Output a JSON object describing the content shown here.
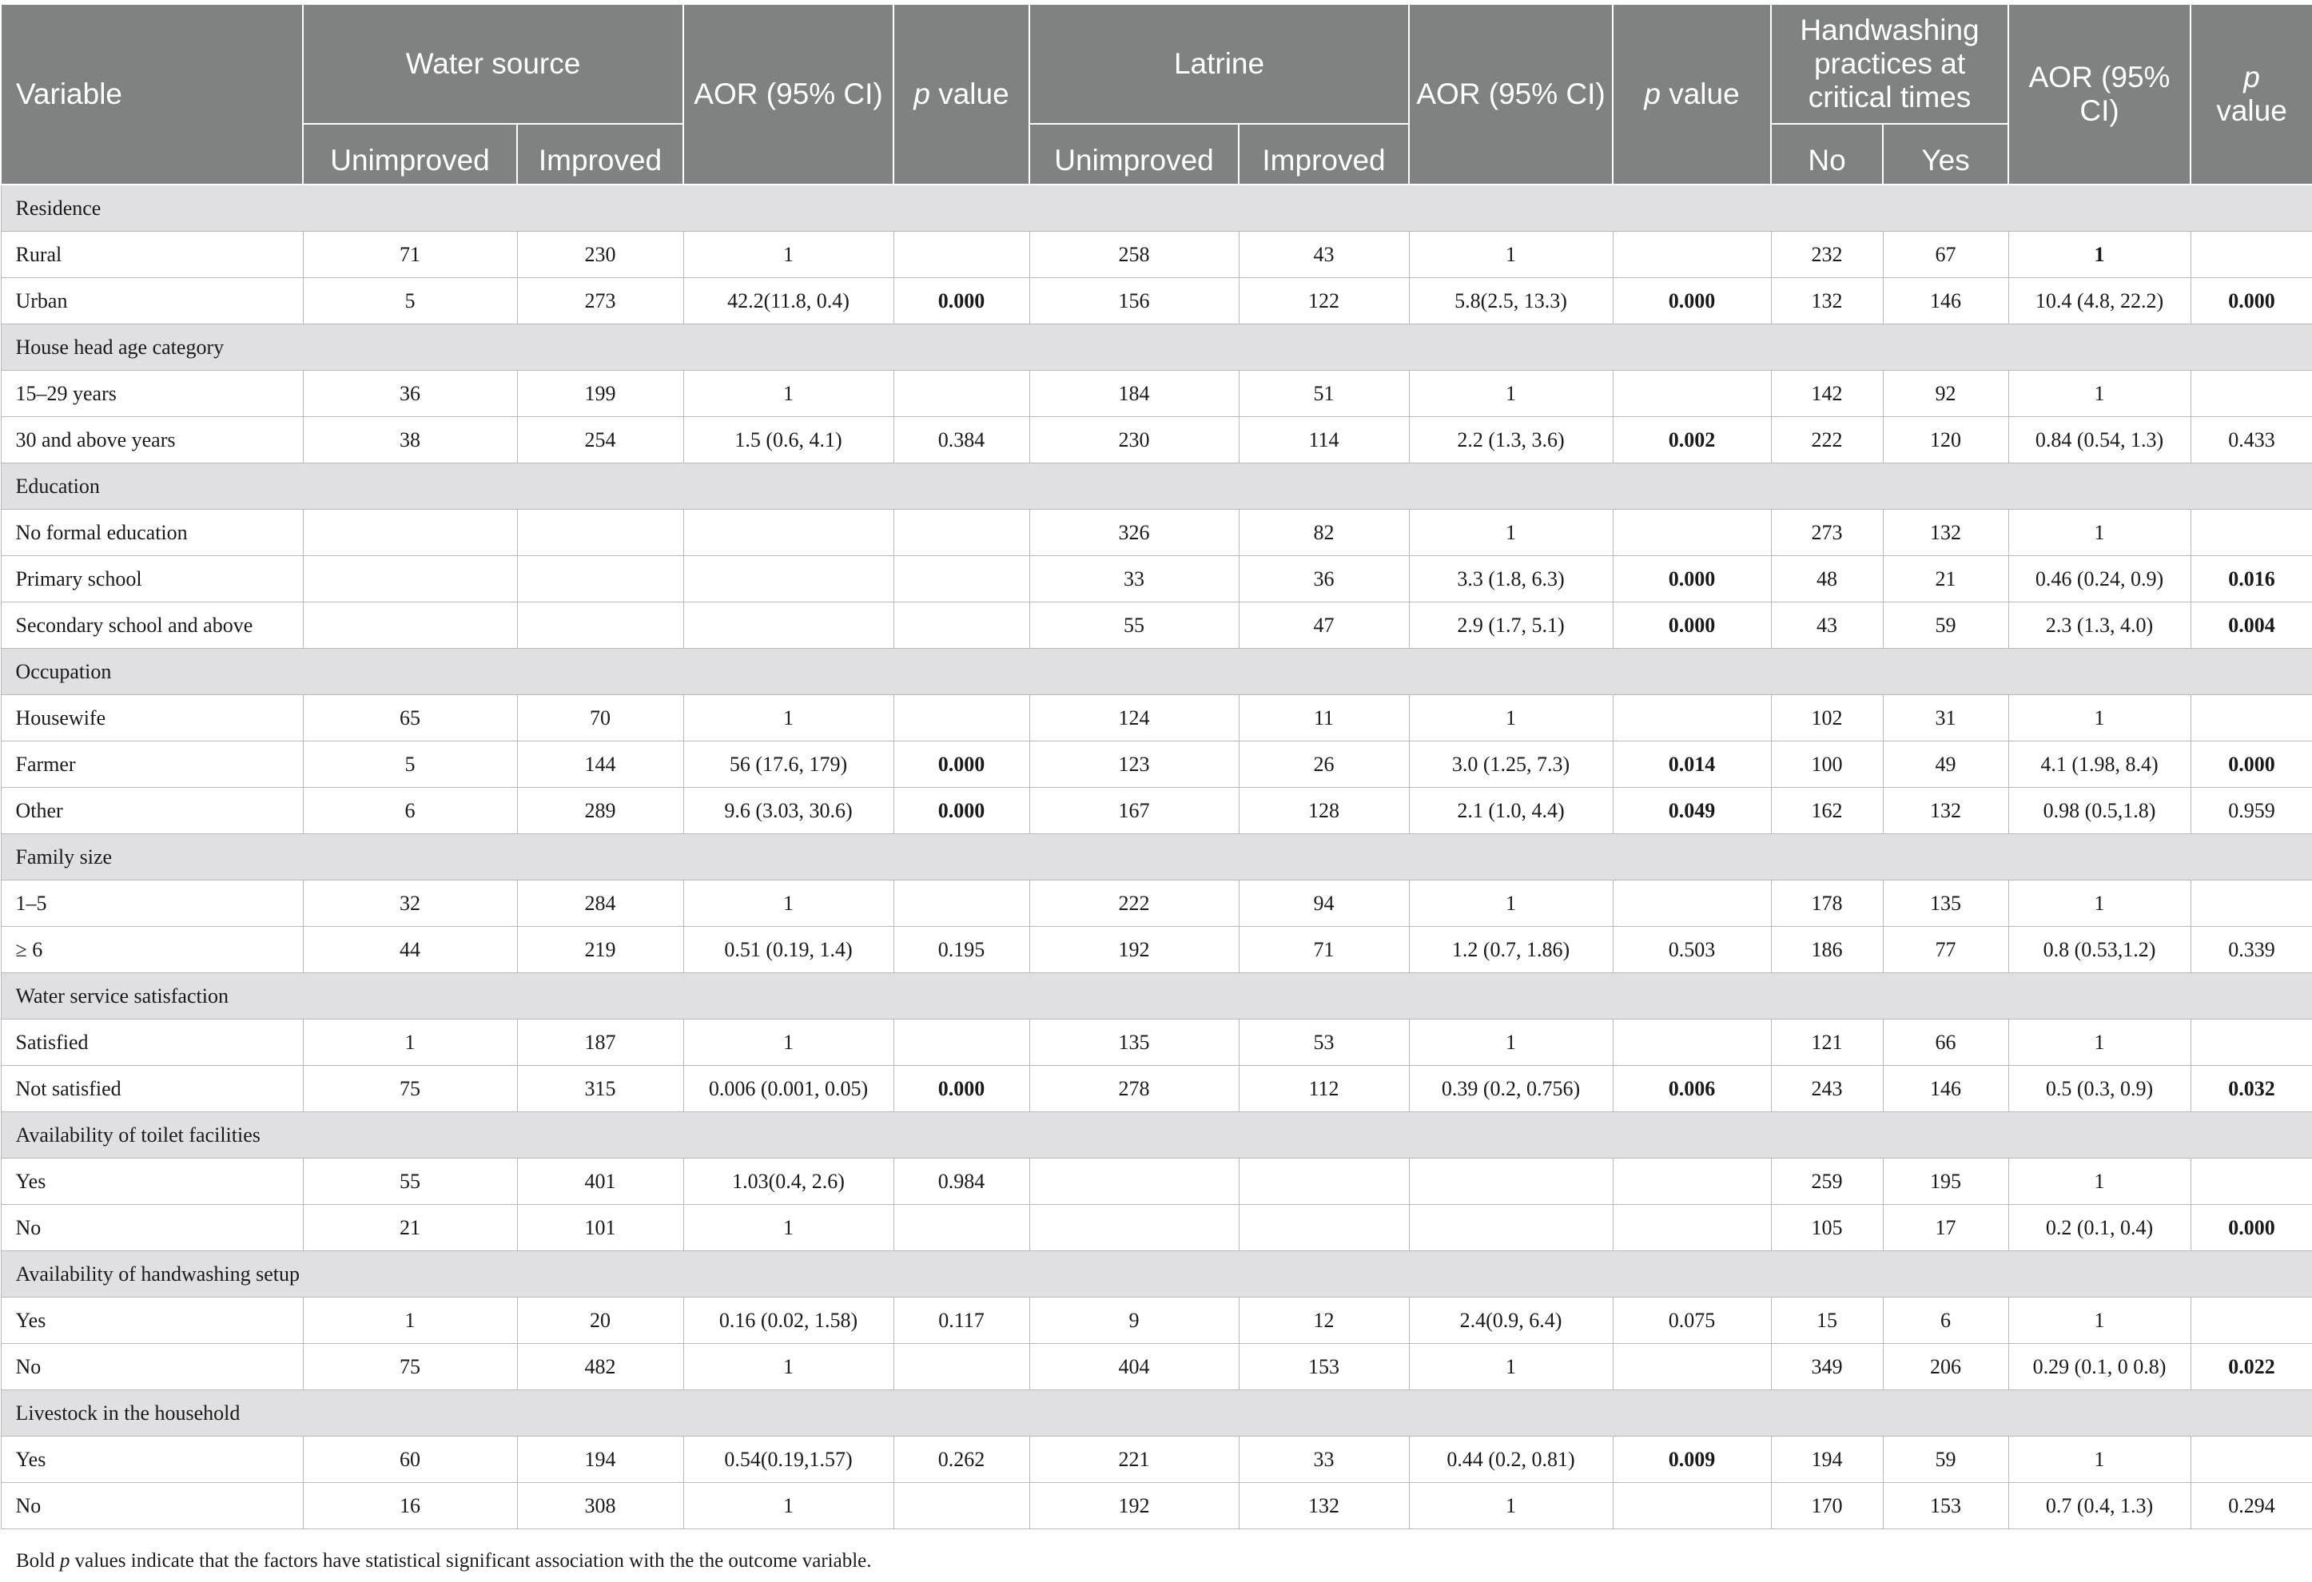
{
  "header": {
    "variable": "Variable",
    "water_source": "Water source",
    "water_unimproved": "Unimproved",
    "water_improved": "Improved",
    "aor_1": "AOR (95% CI)",
    "p_value_1": "value",
    "latrine": "Latrine",
    "latrine_unimproved": "Unimproved",
    "latrine_improved": "Improved",
    "aor_2": "AOR (95% CI)",
    "p_value_2": "value",
    "handwashing": "Handwashing practices at critical times",
    "hw_no": "No",
    "hw_yes": "Yes",
    "aor_3": "AOR (95% CI)",
    "p_value_3": "value",
    "p_letter": "p"
  },
  "categories": [
    {
      "name": "Residence",
      "rows": [
        {
          "label": "Rural",
          "cells": [
            "71",
            "230",
            "1",
            "",
            "258",
            "43",
            "1",
            "",
            "232",
            "67",
            "1",
            ""
          ],
          "bold": [
            10
          ]
        },
        {
          "label": "Urban",
          "cells": [
            "5",
            "273",
            "42.2(11.8, 0.4)",
            "0.000",
            "156",
            "122",
            "5.8(2.5, 13.3)",
            "0.000",
            "132",
            "146",
            "10.4 (4.8, 22.2)",
            "0.000"
          ],
          "bold": [
            3,
            7,
            11
          ]
        }
      ]
    },
    {
      "name": "House head age category",
      "rows": [
        {
          "label": "15–29 years",
          "cells": [
            "36",
            "199",
            "1",
            "",
            "184",
            "51",
            "1",
            "",
            "142",
            "92",
            "1",
            ""
          ],
          "bold": []
        },
        {
          "label": "30 and above years",
          "cells": [
            "38",
            "254",
            "1.5 (0.6, 4.1)",
            "0.384",
            "230",
            "114",
            "2.2 (1.3, 3.6)",
            "0.002",
            "222",
            "120",
            "0.84 (0.54, 1.3)",
            "0.433"
          ],
          "bold": [
            7
          ]
        }
      ]
    },
    {
      "name": "Education",
      "rows": [
        {
          "label": "No formal education",
          "cells": [
            "",
            "",
            "",
            "",
            "326",
            "82",
            "1",
            "",
            "273",
            "132",
            "1",
            ""
          ],
          "bold": []
        },
        {
          "label": "Primary school",
          "cells": [
            "",
            "",
            "",
            "",
            "33",
            "36",
            "3.3 (1.8, 6.3)",
            "0.000",
            "48",
            "21",
            "0.46 (0.24, 0.9)",
            "0.016"
          ],
          "bold": [
            7,
            11
          ]
        },
        {
          "label": "Secondary school and above",
          "cells": [
            "",
            "",
            "",
            "",
            "55",
            "47",
            "2.9 (1.7, 5.1)",
            "0.000",
            "43",
            "59",
            "2.3 (1.3, 4.0)",
            "0.004"
          ],
          "bold": [
            7,
            11
          ]
        }
      ]
    },
    {
      "name": "Occupation",
      "rows": [
        {
          "label": "Housewife",
          "cells": [
            "65",
            "70",
            "1",
            "",
            "124",
            "11",
            "1",
            "",
            "102",
            "31",
            "1",
            ""
          ],
          "bold": []
        },
        {
          "label": "Farmer",
          "cells": [
            "5",
            "144",
            "56 (17.6, 179)",
            "0.000",
            "123",
            "26",
            "3.0 (1.25, 7.3)",
            "0.014",
            "100",
            "49",
            "4.1 (1.98, 8.4)",
            "0.000"
          ],
          "bold": [
            3,
            7,
            11
          ]
        },
        {
          "label": "Other",
          "cells": [
            "6",
            "289",
            "9.6 (3.03, 30.6)",
            "0.000",
            "167",
            "128",
            "2.1 (1.0, 4.4)",
            "0.049",
            "162",
            "132",
            "0.98 (0.5,1.8)",
            "0.959"
          ],
          "bold": [
            3,
            7
          ]
        }
      ]
    },
    {
      "name": "Family size",
      "rows": [
        {
          "label": "1–5",
          "cells": [
            "32",
            "284",
            "1",
            "",
            "222",
            "94",
            "1",
            "",
            "178",
            "135",
            "1",
            ""
          ],
          "bold": []
        },
        {
          "label": "≥ 6",
          "cells": [
            "44",
            "219",
            "0.51 (0.19, 1.4)",
            "0.195",
            "192",
            "71",
            "1.2 (0.7, 1.86)",
            "0.503",
            "186",
            "77",
            "0.8 (0.53,1.2)",
            "0.339"
          ],
          "bold": []
        }
      ]
    },
    {
      "name": "Water service satisfaction",
      "rows": [
        {
          "label": "Satisfied",
          "cells": [
            "1",
            "187",
            "1",
            "",
            "135",
            "53",
            "1",
            "",
            "121",
            "66",
            "1",
            ""
          ],
          "bold": []
        },
        {
          "label": "Not satisfied",
          "cells": [
            "75",
            "315",
            "0.006 (0.001, 0.05)",
            "0.000",
            "278",
            "112",
            "0.39 (0.2, 0.756)",
            "0.006",
            "243",
            "146",
            "0.5 (0.3, 0.9)",
            "0.032"
          ],
          "bold": [
            3,
            7,
            11
          ]
        }
      ]
    },
    {
      "name": "Availability of toilet facilities",
      "rows": [
        {
          "label": "Yes",
          "cells": [
            "55",
            "401",
            "1.03(0.4, 2.6)",
            "0.984",
            "",
            "",
            "",
            "",
            "259",
            "195",
            "1",
            ""
          ],
          "bold": []
        },
        {
          "label": "No",
          "cells": [
            "21",
            "101",
            "1",
            "",
            "",
            "",
            "",
            "",
            "105",
            "17",
            "0.2 (0.1, 0.4)",
            "0.000"
          ],
          "bold": [
            11
          ]
        }
      ]
    },
    {
      "name": "Availability of handwashing setup",
      "rows": [
        {
          "label": "Yes",
          "cells": [
            "1",
            "20",
            "0.16 (0.02, 1.58)",
            "0.117",
            "9",
            "12",
            "2.4(0.9, 6.4)",
            "0.075",
            "15",
            "6",
            "1",
            ""
          ],
          "bold": []
        },
        {
          "label": "No",
          "cells": [
            "75",
            "482",
            "1",
            "",
            "404",
            "153",
            "1",
            "",
            "349",
            "206",
            "0.29 (0.1, 0 0.8)",
            "0.022"
          ],
          "bold": [
            11
          ]
        }
      ]
    },
    {
      "name": "Livestock in the household",
      "rows": [
        {
          "label": "Yes",
          "cells": [
            "60",
            "194",
            "0.54(0.19,1.57)",
            "0.262",
            "221",
            "33",
            "0.44 (0.2, 0.81)",
            "0.009",
            "194",
            "59",
            "1",
            ""
          ],
          "bold": [
            7
          ]
        },
        {
          "label": "No",
          "cells": [
            "16",
            "308",
            "1",
            "",
            "192",
            "132",
            "1",
            "",
            "170",
            "153",
            "0.7 (0.4, 1.3)",
            "0.294"
          ],
          "bold": []
        }
      ]
    }
  ],
  "footnote": {
    "prefix": "Bold",
    "p": "p",
    "text": "values indicate that the factors have statistical significant association with the the outcome variable."
  }
}
